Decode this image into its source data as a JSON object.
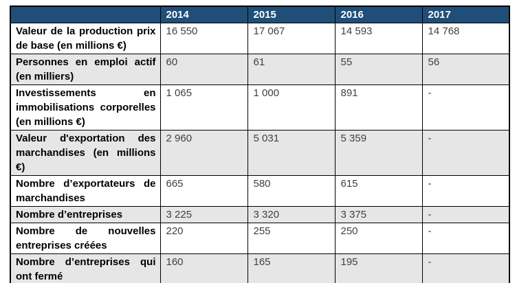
{
  "colors": {
    "header_bg": "#1F4E79",
    "header_text": "#FFFFFF",
    "row_alt_bg": "#E7E6E6",
    "row_bg": "#FFFFFF",
    "border": "#000000",
    "label_text": "#000000",
    "value_text": "#404040"
  },
  "table": {
    "header": {
      "corner": "",
      "years": [
        "2014",
        "2015",
        "2016",
        "2017"
      ]
    },
    "rows": [
      {
        "label": "Valeur de la production prix de base (en millions €)",
        "values": [
          "16 550",
          "17 067",
          "14 593",
          "14 768"
        ],
        "shaded": false,
        "size": "normal"
      },
      {
        "label": "Personnes en emploi actif (en milliers)",
        "values": [
          "60",
          "61",
          "55",
          "56"
        ],
        "shaded": true,
        "size": "normal"
      },
      {
        "label": "Investissements en immobilisations corporelles (en millions €)",
        "values": [
          "1 065",
          "1 000",
          "891",
          "-"
        ],
        "shaded": false,
        "size": "tall"
      },
      {
        "label": "Valeur d'exportation des marchandises (en millions €)",
        "values": [
          "2 960",
          "5 031",
          "5 359",
          "-"
        ],
        "shaded": true,
        "size": "tall"
      },
      {
        "label": "Nombre d’exportateurs de marchandises",
        "values": [
          "665",
          "580",
          "615",
          "-"
        ],
        "shaded": false,
        "size": "normal"
      },
      {
        "label": "Nombre d’entreprises",
        "values": [
          "3 225",
          "3 320",
          "3 375",
          "-"
        ],
        "shaded": true,
        "size": "short"
      },
      {
        "label": "Nombre de nouvelles entreprises créées",
        "values": [
          "220",
          "255",
          "250",
          "-"
        ],
        "shaded": false,
        "size": "normal"
      },
      {
        "label": "Nombre d’entreprises qui ont fermé",
        "values": [
          "160",
          "165",
          "195",
          "-"
        ],
        "shaded": true,
        "size": "normal"
      }
    ]
  }
}
